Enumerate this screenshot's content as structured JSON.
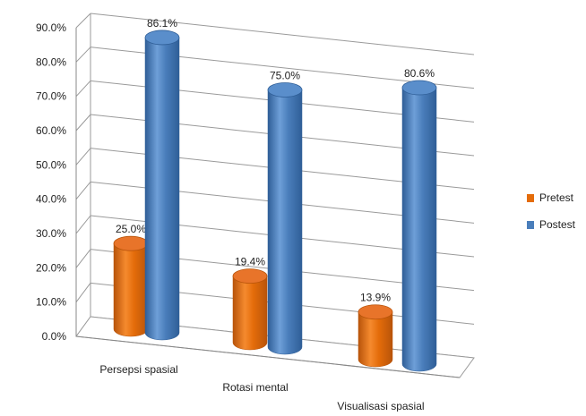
{
  "chart_data": {
    "type": "bar",
    "categories": [
      "Persepsi spasial",
      "Rotasi mental",
      "Visualisasi spasial"
    ],
    "series": [
      {
        "name": "Pretest",
        "values": [
          25.0,
          19.4,
          13.9
        ],
        "labels": [
          "25.0%",
          "19.4%",
          "13.9%"
        ],
        "color": "#E46C0A"
      },
      {
        "name": "Postest",
        "values": [
          86.1,
          75.0,
          80.6
        ],
        "labels": [
          "86.1%",
          "75.0%",
          "80.6%"
        ],
        "color": "#4A7EBB"
      }
    ],
    "ylim": [
      0,
      90
    ],
    "yticks": [
      "0.0%",
      "10.0%",
      "20.0%",
      "30.0%",
      "40.0%",
      "50.0%",
      "60.0%",
      "70.0%",
      "80.0%",
      "90.0%"
    ],
    "grid": true,
    "legend_position": "right",
    "style": "3d-cylinder"
  }
}
